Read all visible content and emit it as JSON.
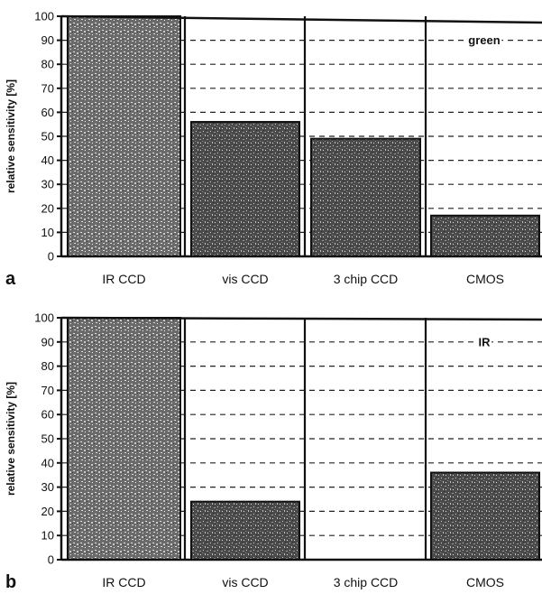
{
  "chart_data": [
    {
      "type": "bar",
      "panel_label": "a",
      "annotation": "green",
      "categories": [
        "IR CCD",
        "vis CCD",
        "3 chip CCD",
        "CMOS"
      ],
      "values": [
        100,
        56,
        49,
        17
      ],
      "xlabel": "",
      "ylabel": "relative sensitivity [%]",
      "ylim": [
        0,
        100
      ],
      "yticks": [
        0,
        10,
        20,
        30,
        40,
        50,
        60,
        70,
        80,
        90,
        100
      ],
      "grid": "dashed horizontal",
      "legend": "none"
    },
    {
      "type": "bar",
      "panel_label": "b",
      "annotation": "IR",
      "categories": [
        "IR CCD",
        "vis CCD",
        "3 chip CCD",
        "CMOS"
      ],
      "values": [
        100,
        24,
        0,
        36
      ],
      "xlabel": "",
      "ylabel": "relative sensitivity [%]",
      "ylim": [
        0,
        100
      ],
      "yticks": [
        0,
        10,
        20,
        30,
        40,
        50,
        60,
        70,
        80,
        90,
        100
      ],
      "grid": "dashed horizontal",
      "legend": "none"
    }
  ]
}
